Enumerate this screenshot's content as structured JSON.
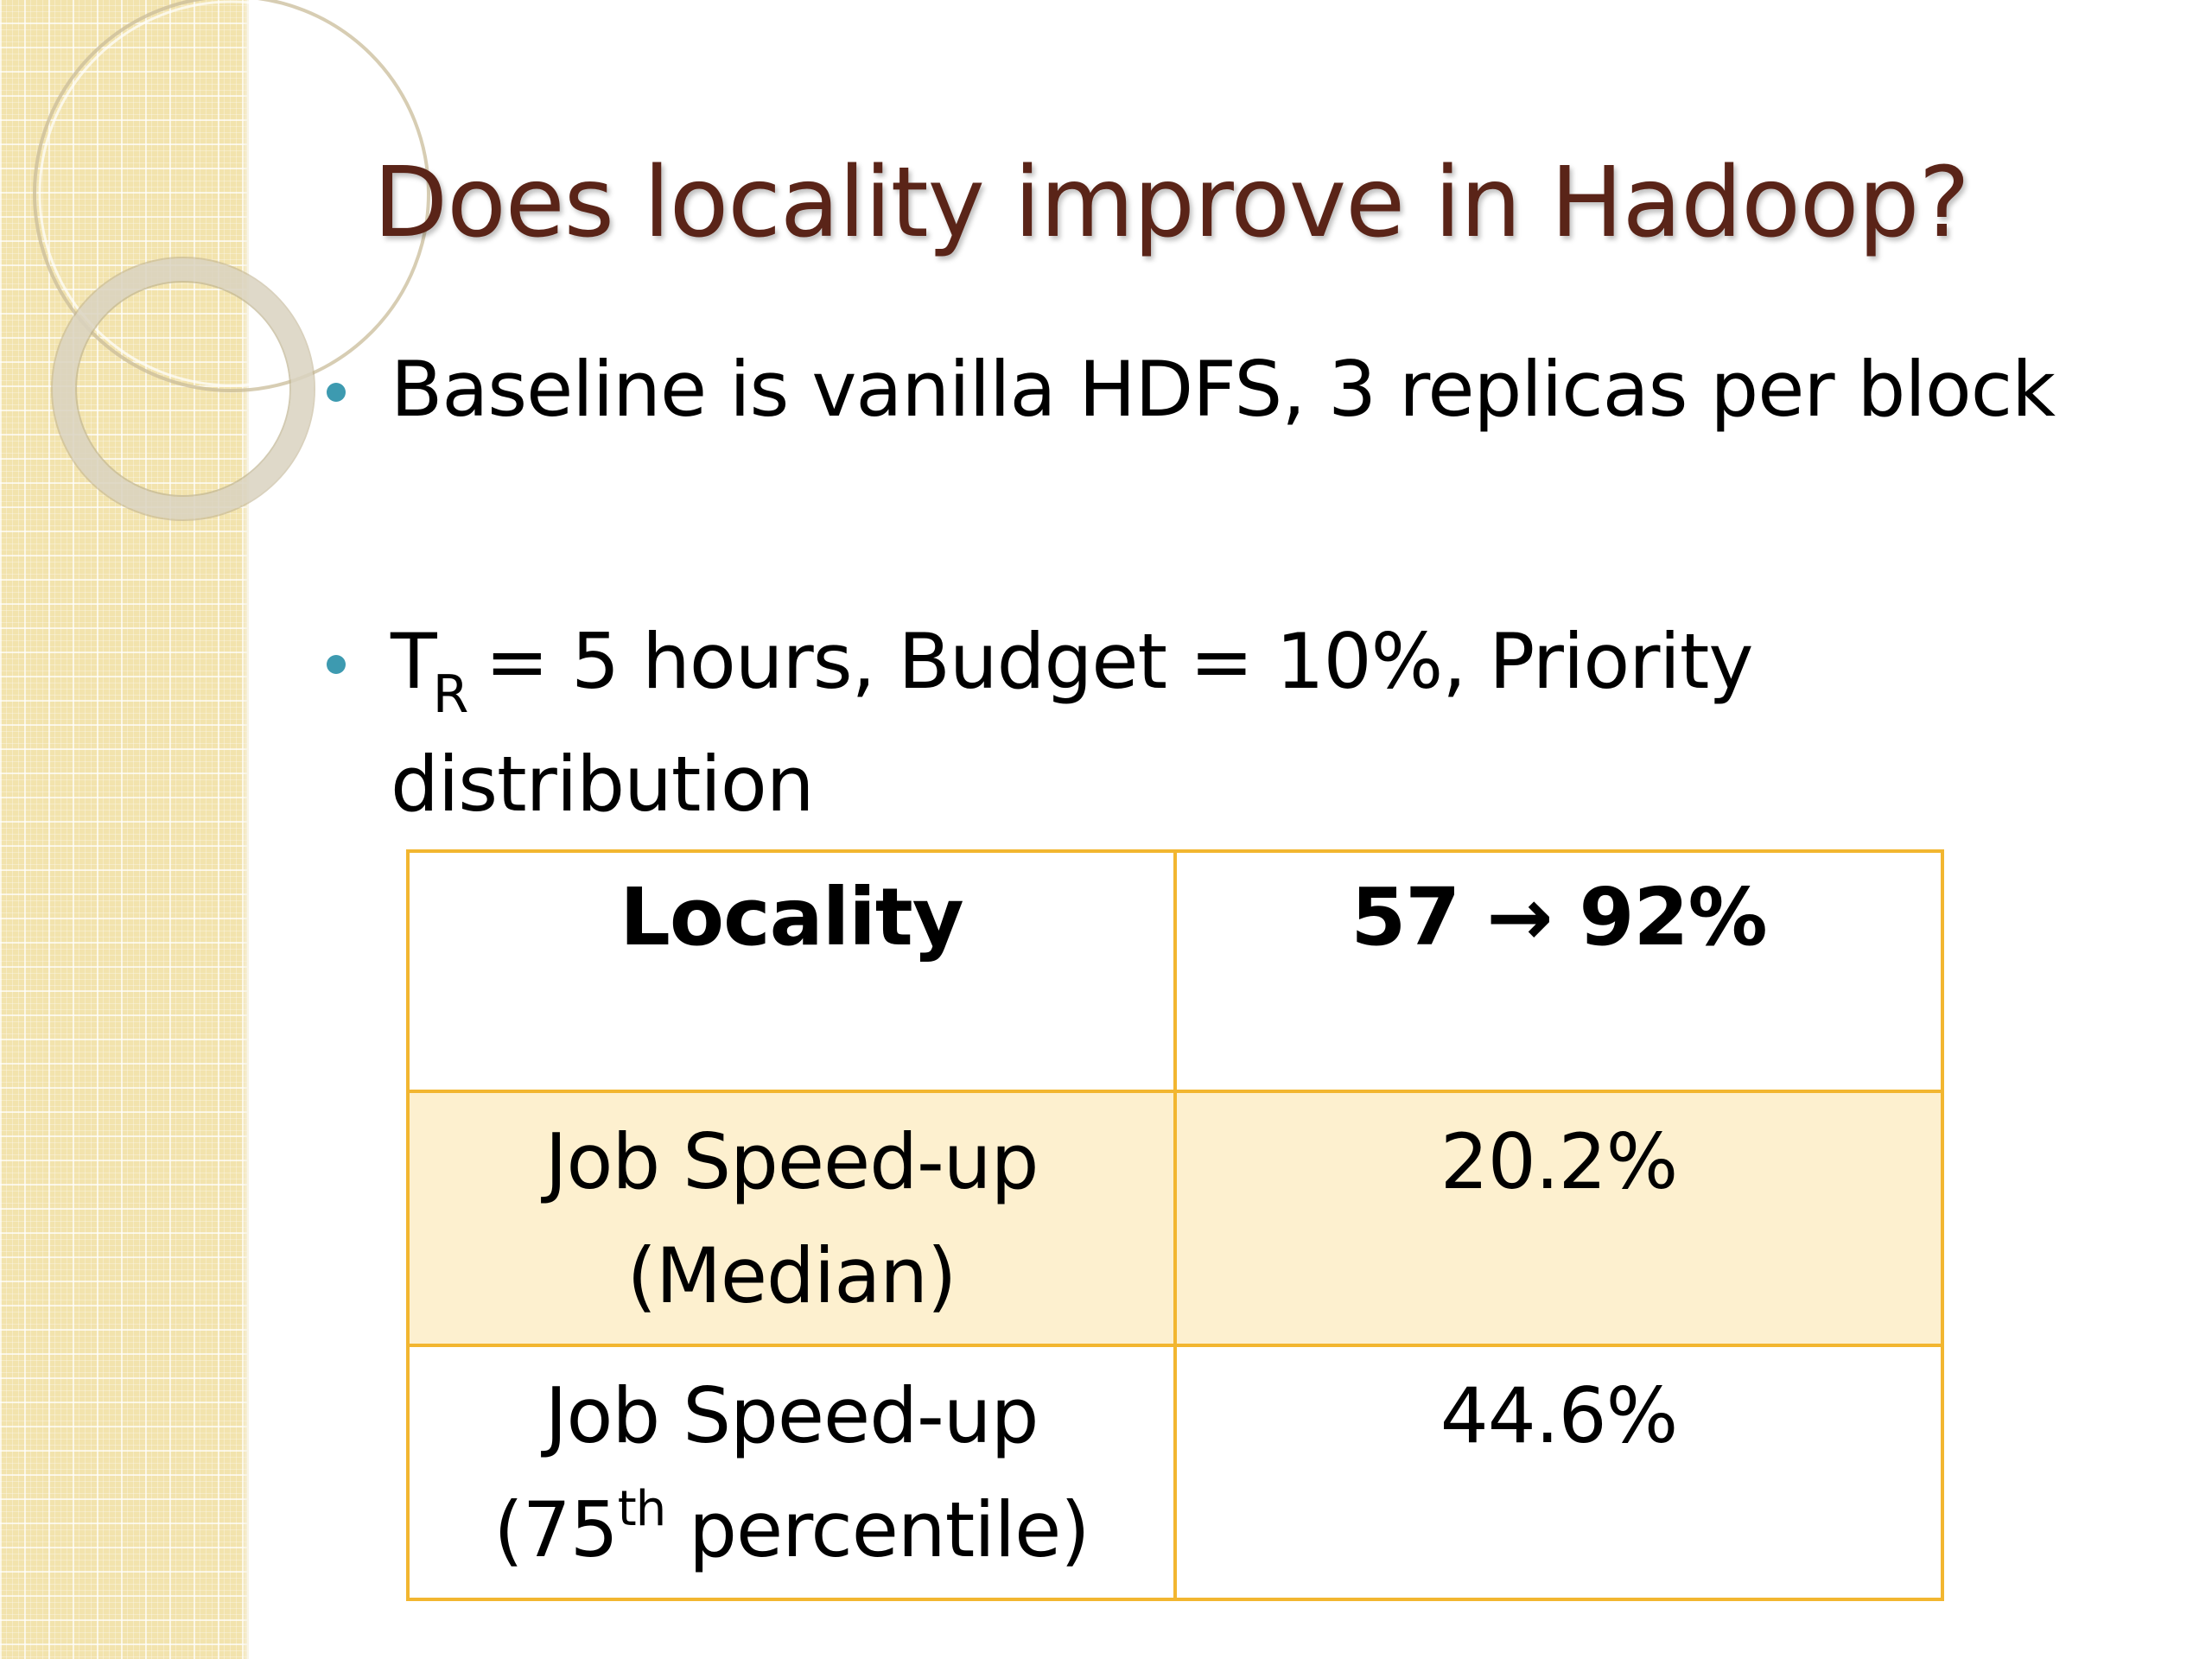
{
  "slide": {
    "title": "Does locality improve in Hadoop?",
    "bullets": [
      {
        "text": "Baseline is vanilla HDFS, 3 replicas per block"
      },
      {
        "prefix": "T",
        "subscript": "R",
        "text": "= 5 hours, Budget = 10%, Priority distribution"
      }
    ],
    "table": {
      "header": {
        "label": "Locality",
        "value": "57 → 92%"
      },
      "rows": [
        {
          "label_line1": "Job Speed-up",
          "label_line2": "(Median)",
          "value": "20.2%"
        },
        {
          "label_line1": "Job Speed-up",
          "label_line2_prefix": "(75",
          "label_line2_sup": "th",
          "label_line2_suffix": " percentile)",
          "value": "44.6%"
        }
      ]
    },
    "colors": {
      "title": "#5a2418",
      "bullet": "#3d9ab0",
      "table_border": "#f2b630",
      "table_band": "#fdf0cf",
      "side_strip": "#f2e3ad"
    }
  }
}
